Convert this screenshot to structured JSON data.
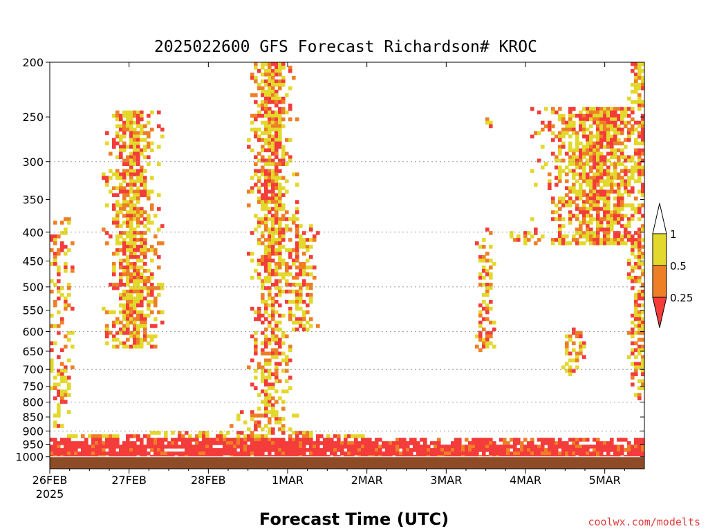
{
  "chart_data": {
    "type": "heatmap",
    "title": "2025022600 GFS Forecast Richardson# KROC",
    "xlabel": "Forecast Time (UTC)",
    "x_ticks": [
      "26FEB",
      "27FEB",
      "28FEB",
      "1MAR",
      "2MAR",
      "3MAR",
      "4MAR",
      "5MAR"
    ],
    "x_start_year": "2025",
    "x_range_days": [
      0,
      7.5
    ],
    "y_ticks": [
      200,
      250,
      300,
      350,
      400,
      450,
      500,
      550,
      600,
      650,
      700,
      750,
      800,
      850,
      900,
      950,
      1000
    ],
    "y_units": "hPa",
    "y_reversed": true,
    "gridlines_at": [
      300,
      400,
      500,
      600,
      700,
      800,
      900
    ],
    "colorbar": {
      "labels": [
        "1",
        "0.5",
        "0.25"
      ],
      "bins": [
        {
          "range": "0.5-1",
          "color": "#e3d82c"
        },
        {
          "range": "0.25-0.5",
          "color": "#ee7f26"
        },
        {
          "range": "<0.25",
          "color": "#f43c3a"
        }
      ]
    },
    "surface_color": "#8e4c26",
    "regions": [
      {
        "day": [
          0.82,
          1.12
        ],
        "p": [
          260,
          600
        ],
        "level": "yellow"
      },
      {
        "day": [
          0.95,
          1.3
        ],
        "p": [
          300,
          560
        ],
        "level": "red"
      },
      {
        "day": [
          1.05,
          1.45
        ],
        "p": [
          260,
          620
        ],
        "level": "orange"
      },
      {
        "day": [
          2.35,
          2.8
        ],
        "p": [
          200,
          560
        ],
        "level": "orange"
      },
      {
        "day": [
          2.75,
          3.1
        ],
        "p": [
          450,
          850
        ],
        "level": "red"
      },
      {
        "day": [
          6.5,
          7.4
        ],
        "p": [
          240,
          400
        ],
        "level": "red"
      },
      {
        "day": [
          7.3,
          7.5
        ],
        "p": [
          200,
          300
        ],
        "level": "yellow"
      }
    ]
  },
  "credit": "coolwx.com/modelts"
}
